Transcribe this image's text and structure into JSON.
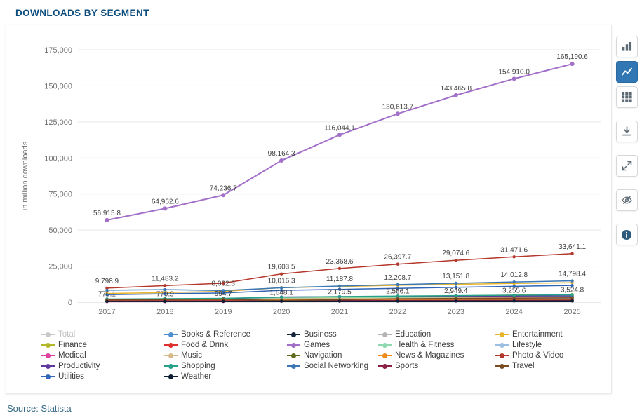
{
  "header": {
    "title": "DOWNLOADS BY SEGMENT"
  },
  "source": {
    "text": "Source: Statista"
  },
  "toolbar": {
    "buttons": [
      {
        "icon": "bar-chart",
        "active": false,
        "gap": false
      },
      {
        "icon": "line-chart",
        "active": true,
        "gap": false
      },
      {
        "icon": "data-grid",
        "active": false,
        "gap": false
      },
      {
        "icon": "download",
        "active": false,
        "gap": true
      },
      {
        "icon": "fullscreen",
        "active": false,
        "gap": true
      },
      {
        "icon": "hide",
        "active": false,
        "gap": true
      },
      {
        "icon": "info",
        "active": false,
        "gap": true
      }
    ]
  },
  "chart_data": {
    "type": "line",
    "title": "DOWNLOADS BY SEGMENT",
    "ylabel": "in million downloads",
    "xlabel": "",
    "categories": [
      "2017",
      "2018",
      "2019",
      "2020",
      "2021",
      "2022",
      "2023",
      "2024",
      "2025"
    ],
    "ylim": [
      0,
      175000
    ],
    "ytick_step": 25000,
    "grid": true,
    "legend_position": "bottom",
    "accent_color": "#3077b4",
    "series": [
      {
        "name": "Total",
        "color": "#c4c4c4",
        "inactive": true,
        "values": null,
        "labeled": false
      },
      {
        "name": "Books & Reference",
        "color": "#4d8fd1",
        "inactive": false,
        "values": [
          1900,
          2050,
          2200,
          2750,
          2950,
          3150,
          3350,
          3550,
          3750
        ],
        "labeled": false
      },
      {
        "name": "Business",
        "color": "#16243d",
        "inactive": false,
        "values": [
          770.1,
          779.9,
          994.7,
          1648.1,
          2179.5,
          2586.1,
          2949.4,
          3255.6,
          3524.8
        ],
        "labeled": true
      },
      {
        "name": "Education",
        "color": "#b5b5b5",
        "inactive": false,
        "values": [
          1450,
          1550,
          1750,
          2550,
          2450,
          2550,
          2650,
          2750,
          2850
        ],
        "labeled": false
      },
      {
        "name": "Entertainment",
        "color": "#e9b32a",
        "inactive": false,
        "values": [
          6000,
          6700,
          7500,
          10100,
          10900,
          11700,
          12400,
          13000,
          13500
        ],
        "labeled": false
      },
      {
        "name": "Finance",
        "color": "#b3b82b",
        "inactive": false,
        "values": [
          1300,
          1600,
          2000,
          2600,
          3300,
          3900,
          4400,
          4900,
          5400
        ],
        "labeled": false
      },
      {
        "name": "Food & Drink",
        "color": "#e03131",
        "inactive": false,
        "values": [
          900,
          1100,
          1400,
          2100,
          2500,
          2750,
          3000,
          3200,
          3400
        ],
        "labeled": false
      },
      {
        "name": "Games",
        "color": "#a26fc9",
        "inactive": false,
        "values": [
          56915.8,
          64962.6,
          74236.7,
          98164.3,
          116044.1,
          130613.7,
          143465.8,
          154910.0,
          165190.6
        ],
        "labeled": true
      },
      {
        "name": "Health & Fitness",
        "color": "#8ed9ad",
        "inactive": false,
        "values": [
          1700,
          1850,
          2050,
          2850,
          2950,
          3100,
          3300,
          3500,
          3700
        ],
        "labeled": false
      },
      {
        "name": "Lifestyle",
        "color": "#9bbfe0",
        "inactive": false,
        "values": [
          1750,
          1850,
          1950,
          2250,
          2350,
          2450,
          2550,
          2650,
          2750
        ],
        "labeled": false
      },
      {
        "name": "Medical",
        "color": "#e0409f",
        "inactive": false,
        "values": [
          320,
          360,
          420,
          640,
          700,
          750,
          800,
          850,
          900
        ],
        "labeled": false
      },
      {
        "name": "Music",
        "color": "#d9b98a",
        "inactive": false,
        "values": [
          1600,
          1750,
          1900,
          2300,
          2500,
          2700,
          2900,
          3100,
          3300
        ],
        "labeled": false
      },
      {
        "name": "Navigation",
        "color": "#5e6b1d",
        "inactive": false,
        "values": [
          1000,
          1050,
          1100,
          950,
          1200,
          1280,
          1340,
          1400,
          1450
        ],
        "labeled": false
      },
      {
        "name": "News & Magazines",
        "color": "#f08c1e",
        "inactive": false,
        "values": [
          1200,
          1250,
          1320,
          1520,
          1570,
          1620,
          1670,
          1720,
          1770
        ],
        "labeled": false
      },
      {
        "name": "Photo & Video",
        "color": "#b5372b",
        "inactive": false,
        "values": [
          9798.9,
          11483.2,
          13200,
          19603.5,
          23368.6,
          26397.7,
          29074.6,
          31471.6,
          33641.1
        ],
        "labeled": [
          true,
          true,
          false,
          true,
          true,
          true,
          true,
          true,
          true
        ]
      },
      {
        "name": "Productivity",
        "color": "#5d3a9b",
        "inactive": false,
        "values": [
          2000,
          2200,
          2450,
          3600,
          3800,
          3950,
          4100,
          4250,
          4400
        ],
        "labeled": false
      },
      {
        "name": "Shopping",
        "color": "#27a08a",
        "inactive": false,
        "values": [
          2200,
          2450,
          2700,
          3500,
          3900,
          4250,
          4550,
          4850,
          5100
        ],
        "labeled": false
      },
      {
        "name": "Social Networking",
        "color": "#3a78b5",
        "inactive": false,
        "values": [
          8300,
          8700,
          8062.3,
          10016.3,
          11187.8,
          12208.7,
          13151.8,
          14012.8,
          14798.4
        ],
        "labeled": [
          false,
          false,
          true,
          true,
          true,
          true,
          true,
          true,
          true
        ]
      },
      {
        "name": "Sports",
        "color": "#8a2347",
        "inactive": false,
        "values": [
          900,
          950,
          1000,
          820,
          1100,
          1190,
          1260,
          1320,
          1380
        ],
        "labeled": false
      },
      {
        "name": "Travel",
        "color": "#7a4a21",
        "inactive": false,
        "values": [
          1700,
          1850,
          2000,
          1150,
          1750,
          2350,
          2600,
          2800,
          2950
        ],
        "labeled": false
      },
      {
        "name": "Utilities",
        "color": "#2f66b8",
        "inactive": false,
        "values": [
          5200,
          5800,
          6400,
          8200,
          8900,
          9600,
          10300,
          11000,
          11600
        ],
        "labeled": false
      },
      {
        "name": "Weather",
        "color": "#0f1e33",
        "inactive": false,
        "values": [
          500,
          520,
          560,
          640,
          680,
          720,
          760,
          800,
          840
        ],
        "labeled": false
      }
    ]
  }
}
